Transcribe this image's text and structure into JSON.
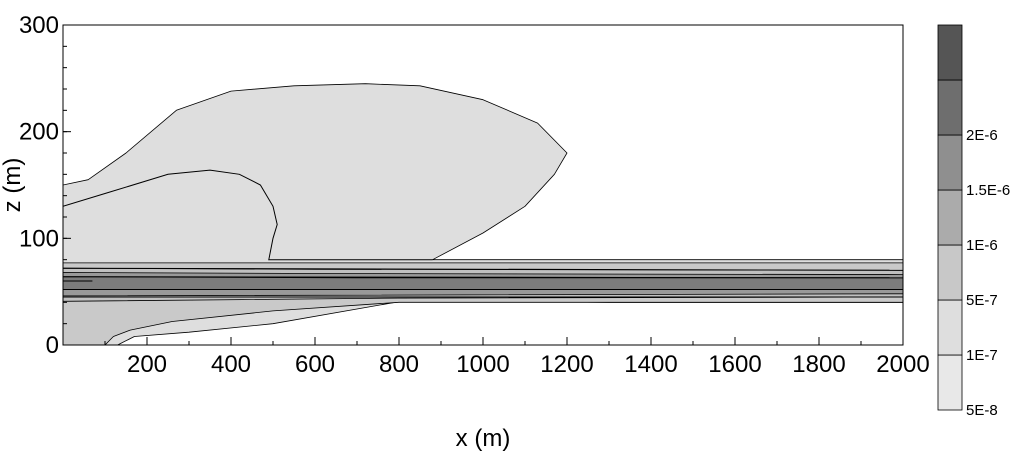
{
  "chart_data": {
    "type": "contour",
    "title": "",
    "xlabel": "x (m)",
    "ylabel": "z (m)",
    "xlim": [
      0,
      2000
    ],
    "ylim": [
      0,
      300
    ],
    "x_ticks": [
      {
        "value": 200,
        "label": "200"
      },
      {
        "value": 400,
        "label": "400"
      },
      {
        "value": 600,
        "label": "600"
      },
      {
        "value": 800,
        "label": "800"
      },
      {
        "value": 1000,
        "label": "1000"
      },
      {
        "value": 1200,
        "label": "1200"
      },
      {
        "value": 1400,
        "label": "1400"
      },
      {
        "value": 1600,
        "label": "1600"
      },
      {
        "value": 1800,
        "label": "1800"
      },
      {
        "value": 2000,
        "label": "2000"
      }
    ],
    "y_ticks": [
      {
        "value": 0,
        "label": "0"
      },
      {
        "value": 100,
        "label": "100"
      },
      {
        "value": 200,
        "label": "200"
      },
      {
        "value": 300,
        "label": "300"
      }
    ],
    "grid": false,
    "legend": "colorbar-right",
    "colorbar_labels": [
      "5E-8",
      "1E-7",
      "5E-7",
      "1E-6",
      "1.5E-6",
      "2E-6"
    ],
    "colorbar_colors": [
      "#e8e8e8",
      "#dedede",
      "#c8c8c8",
      "#ababab",
      "#8f8f8f",
      "#6e6e6e",
      "#555555"
    ],
    "filled_regions": [
      {
        "level": "5E-8",
        "color": "#dedede",
        "boundary": [
          [
            0,
            150
          ],
          [
            60,
            155
          ],
          [
            150,
            180
          ],
          [
            270,
            220
          ],
          [
            400,
            238
          ],
          [
            550,
            243
          ],
          [
            720,
            245
          ],
          [
            850,
            243
          ],
          [
            1000,
            230
          ],
          [
            1130,
            208
          ],
          [
            1200,
            180
          ],
          [
            1170,
            160
          ],
          [
            1100,
            130
          ],
          [
            1000,
            105
          ],
          [
            880,
            80
          ],
          [
            2000,
            80
          ],
          [
            2000,
            40
          ],
          [
            1300,
            40
          ],
          [
            820,
            42
          ],
          [
            500,
            20
          ],
          [
            300,
            12
          ],
          [
            170,
            8
          ],
          [
            130,
            0
          ],
          [
            0,
            0
          ]
        ]
      },
      {
        "level": "1E-7",
        "color": "#c9c9c9",
        "boundary": [
          [
            0,
            77
          ],
          [
            2000,
            77
          ],
          [
            2000,
            40
          ],
          [
            1300,
            40
          ],
          [
            800,
            40
          ],
          [
            500,
            32
          ],
          [
            260,
            22
          ],
          [
            160,
            14
          ],
          [
            120,
            8
          ],
          [
            100,
            0
          ],
          [
            0,
            0
          ]
        ]
      },
      {
        "level": "5E-7",
        "color": "#c0c0c0",
        "boundary": [
          [
            0,
            72
          ],
          [
            600,
            71
          ],
          [
            2000,
            70
          ],
          [
            2000,
            45
          ],
          [
            800,
            44
          ],
          [
            0,
            41
          ]
        ]
      },
      {
        "level": "1E-6",
        "color": "#999999",
        "boundary": [
          [
            0,
            68
          ],
          [
            600,
            67
          ],
          [
            2000,
            66
          ],
          [
            2000,
            48
          ],
          [
            0,
            46
          ]
        ]
      },
      {
        "level": "1.5E-6",
        "color": "#7c7c7c",
        "boundary": [
          [
            0,
            64
          ],
          [
            700,
            63
          ],
          [
            2000,
            63
          ],
          [
            2000,
            52
          ],
          [
            0,
            52
          ]
        ]
      }
    ],
    "contour_lines": [
      [
        [
          0,
          130
        ],
        [
          100,
          142
        ],
        [
          250,
          160
        ],
        [
          350,
          164
        ],
        [
          420,
          160
        ],
        [
          470,
          150
        ],
        [
          500,
          130
        ],
        [
          510,
          113
        ],
        [
          500,
          100
        ],
        [
          490,
          80
        ],
        [
          880,
          80
        ]
      ],
      [
        [
          0,
          64
        ],
        [
          2000,
          63
        ]
      ],
      [
        [
          0,
          52
        ],
        [
          2000,
          52
        ]
      ],
      [
        [
          0,
          60
        ],
        [
          70,
          60
        ]
      ],
      [
        [
          0,
          72
        ],
        [
          2000,
          70
        ]
      ],
      [
        [
          0,
          45
        ],
        [
          2000,
          45
        ]
      ]
    ]
  }
}
